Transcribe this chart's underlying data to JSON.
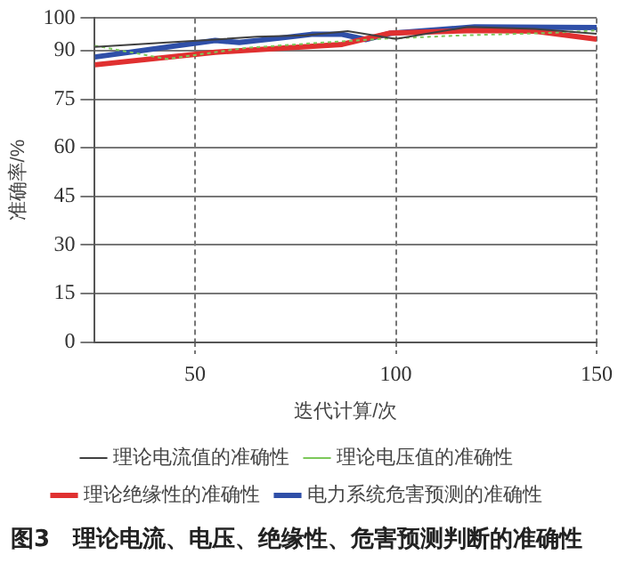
{
  "chart_data": {
    "type": "line",
    "title": "图3　理论电流、电压、绝缘性、危害预测判断的准确性",
    "xlabel": "迭代计算/次",
    "ylabel": "准确率/%",
    "xlim": [
      25,
      150
    ],
    "xticks": [
      50,
      100,
      150
    ],
    "ylim": [
      0,
      100
    ],
    "yticks": [
      0,
      15,
      30,
      45,
      60,
      75,
      90,
      100
    ],
    "grid": true,
    "legend": "bottom",
    "marker": "none",
    "series": [
      {
        "name": "理论电流值的准确性",
        "color": "#404040",
        "line_style": "solid",
        "x": [
          25,
          43,
          55,
          65.5,
          77.5,
          88,
          100,
          118,
          134.6,
          150
        ],
        "values": [
          91.1,
          92.5,
          93.4,
          94.3,
          94.7,
          96,
          93.6,
          97.3,
          96.7,
          95.2
        ]
      },
      {
        "name": "理论电压值的准确性",
        "color": "#7cc85a",
        "line_style": "dotted",
        "x": [
          25,
          43,
          62.5,
          82,
          96,
          117,
          137.6,
          150
        ],
        "values": [
          91.5,
          87.4,
          90.8,
          92.5,
          93.6,
          94.7,
          95.4,
          96.2
        ]
      },
      {
        "name": "理论绝缘性的准确性",
        "color": "#e03030",
        "line_style": "solid",
        "x": [
          25,
          55,
          86.6,
          98.6,
          119.6,
          134.6,
          150
        ],
        "values": [
          85.6,
          89.5,
          91.9,
          95.4,
          96.2,
          96,
          93.5
        ]
      },
      {
        "name": "电力系统危害预测的准确性",
        "color": "#2f4fa8",
        "line_style": "solid",
        "x": [
          25,
          55,
          61,
          71.5,
          79,
          86.6,
          92.6,
          98.6,
          119.6,
          150
        ],
        "values": [
          88,
          93.1,
          92.5,
          93.9,
          95,
          95,
          93.4,
          95.3,
          97.3,
          97.1
        ]
      }
    ]
  }
}
